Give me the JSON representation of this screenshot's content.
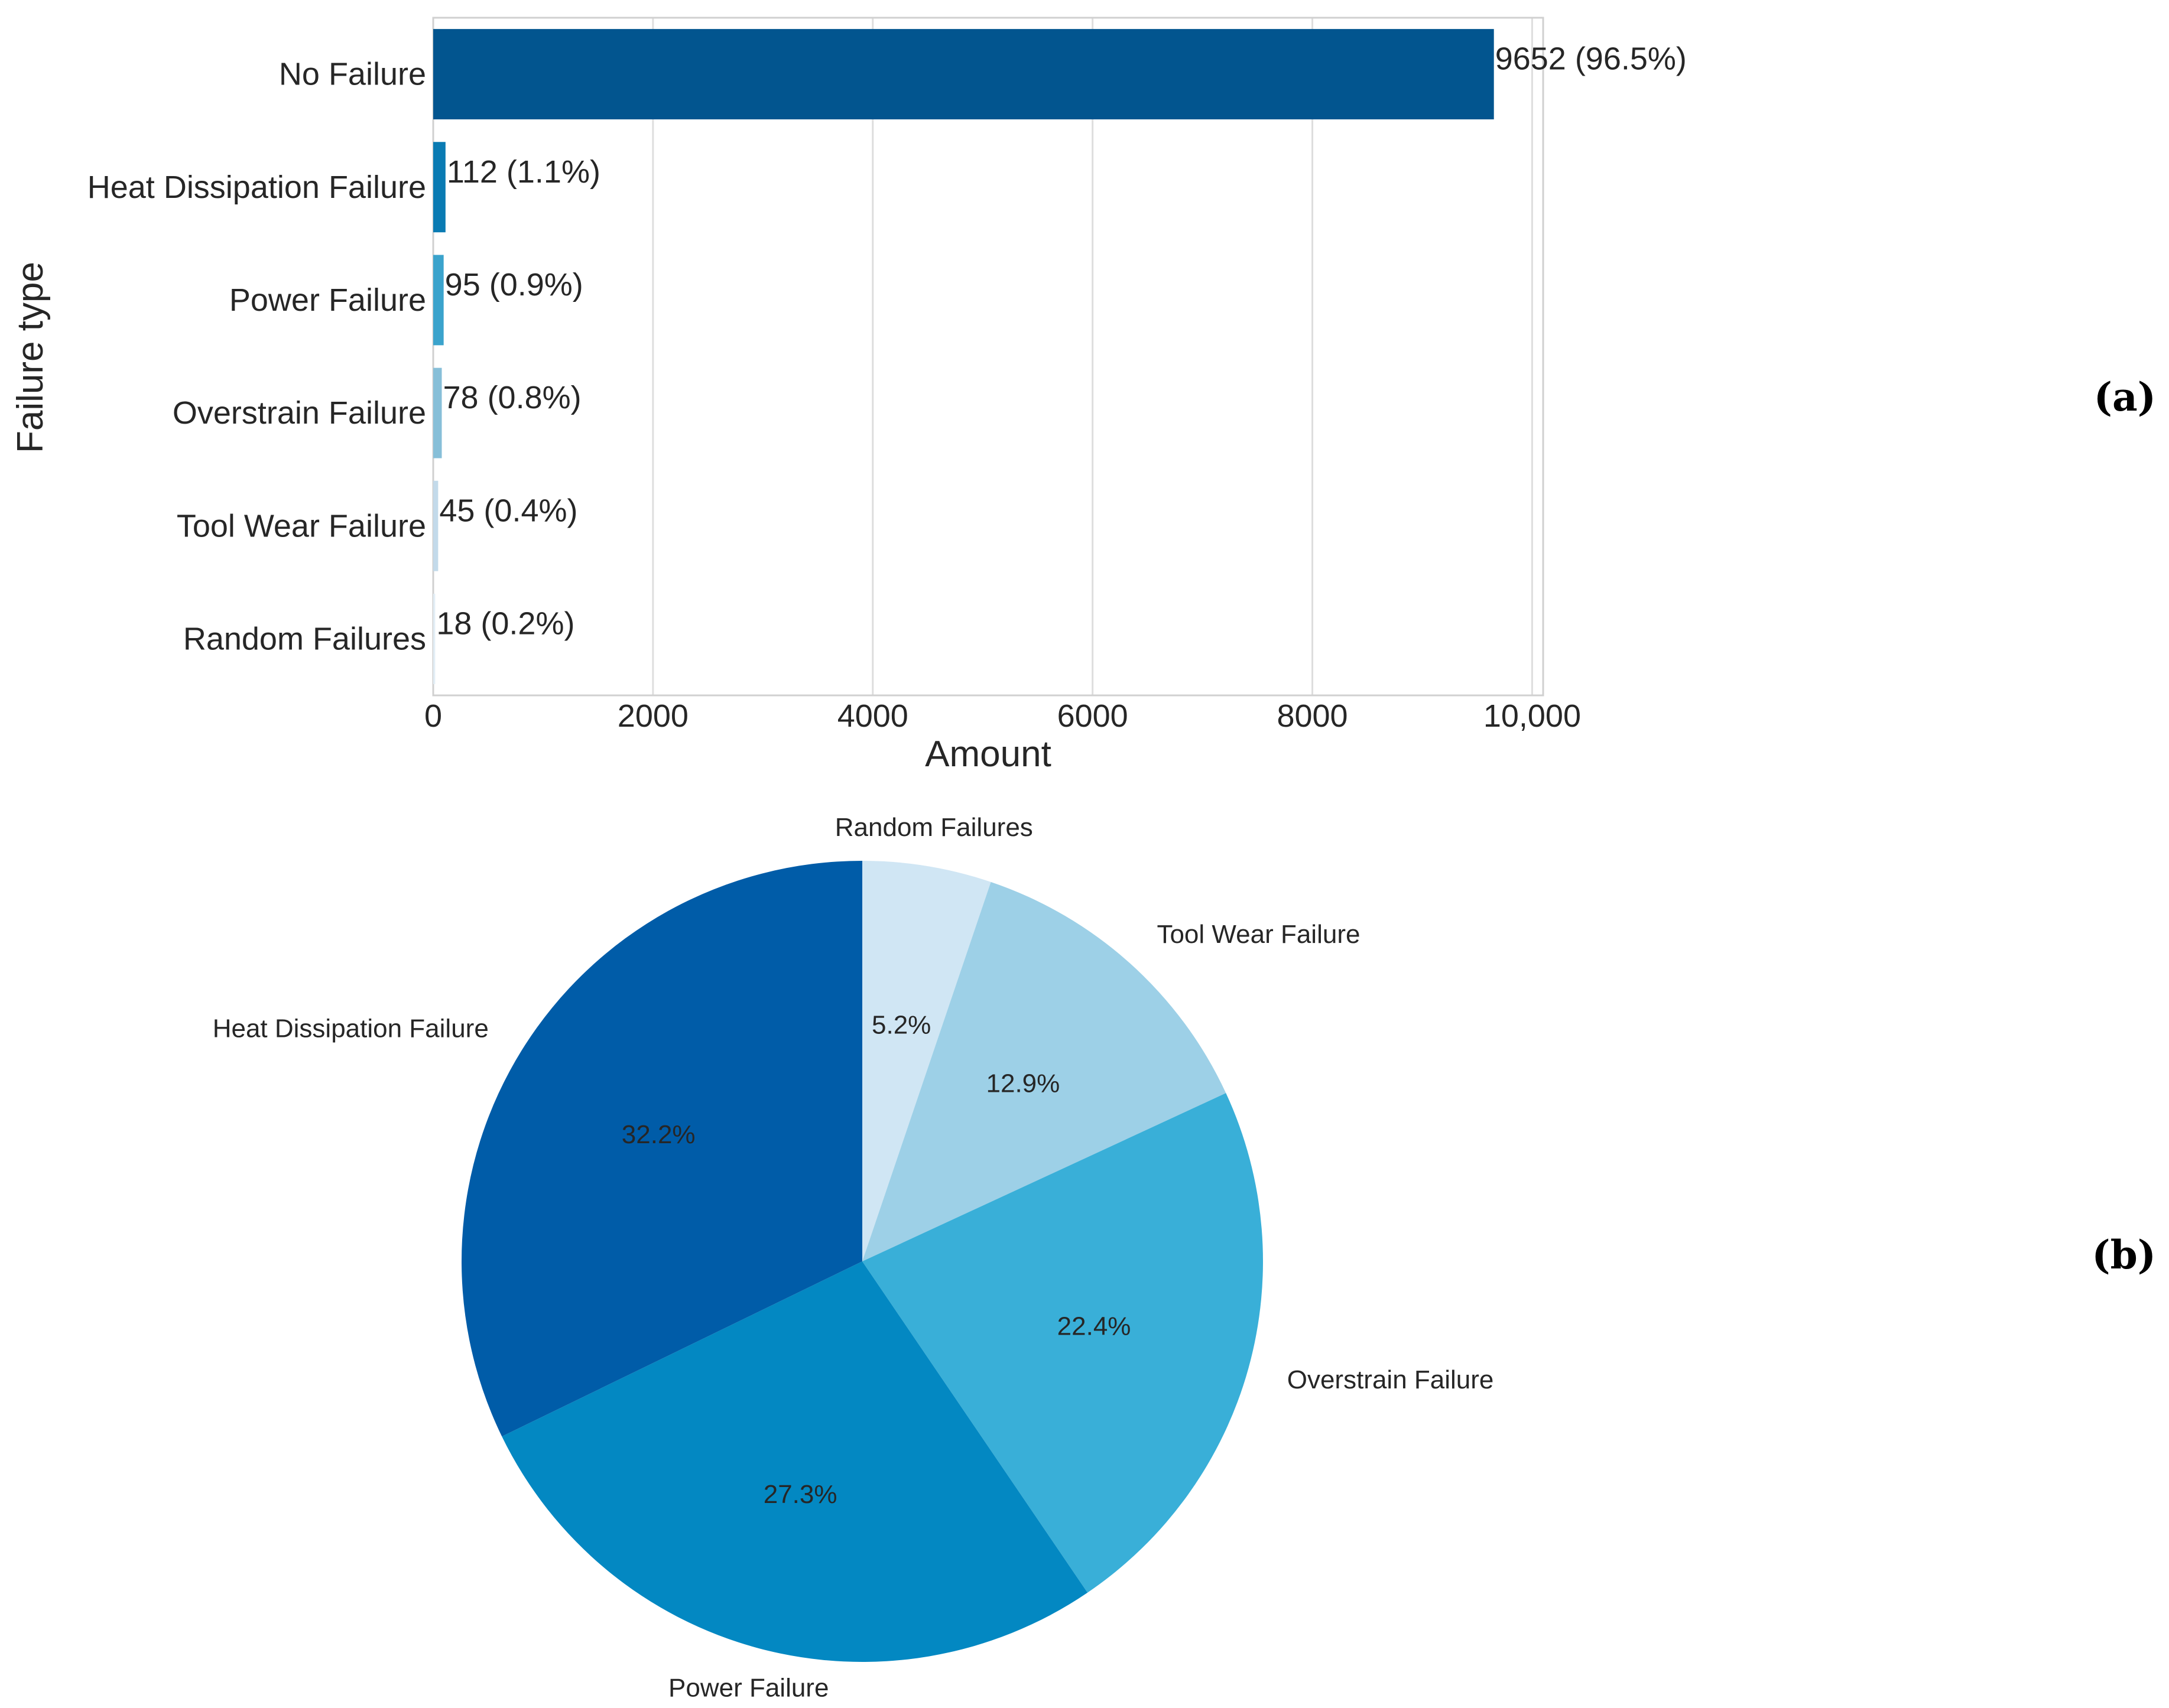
{
  "chart_data": [
    {
      "type": "bar",
      "orientation": "horizontal",
      "panel_label": "(a)",
      "title": "",
      "xlabel": "Amount",
      "ylabel": "Failure type",
      "xlim": [
        0,
        10100
      ],
      "xticks": [
        0,
        2000,
        4000,
        6000,
        8000,
        10000
      ],
      "xtick_labels": [
        "0",
        "2000",
        "4000",
        "6000",
        "8000",
        "10,000"
      ],
      "grid": "vertical",
      "categories": [
        "No Failure",
        "Heat Dissipation Failure",
        "Power Failure",
        "Overstrain Failure",
        "Tool Wear Failure",
        "Random Failures"
      ],
      "values": [
        9652,
        112,
        95,
        78,
        45,
        18
      ],
      "data_labels": [
        "9652 (96.5%)",
        "112 (1.1%)",
        "95 (0.9%)",
        "78 (0.8%)",
        "45 (0.4%)",
        "18 (0.2%)"
      ],
      "colors": [
        "#02558f",
        "#0a7bb3",
        "#3ba3cc",
        "#87bfd8",
        "#c3daea",
        "#e3eef6"
      ]
    },
    {
      "type": "pie",
      "panel_label": "(b)",
      "title": "",
      "start_angle_deg": 90,
      "direction": "clockwise",
      "slices": [
        {
          "label": "Random Failures",
          "value": 5.2,
          "pct_label": "5.2%",
          "color": "#d0e6f4"
        },
        {
          "label": "Tool Wear Failure",
          "value": 12.9,
          "pct_label": "12.9%",
          "color": "#9dd0e7"
        },
        {
          "label": "Overstrain Failure",
          "value": 22.4,
          "pct_label": "22.4%",
          "color": "#39afd8"
        },
        {
          "label": "Power Failure",
          "value": 27.3,
          "pct_label": "27.3%",
          "color": "#0388c2"
        },
        {
          "label": "Heat Dissipation Failure",
          "value": 32.2,
          "pct_label": "32.2%",
          "color": "#005ca8"
        }
      ]
    }
  ]
}
